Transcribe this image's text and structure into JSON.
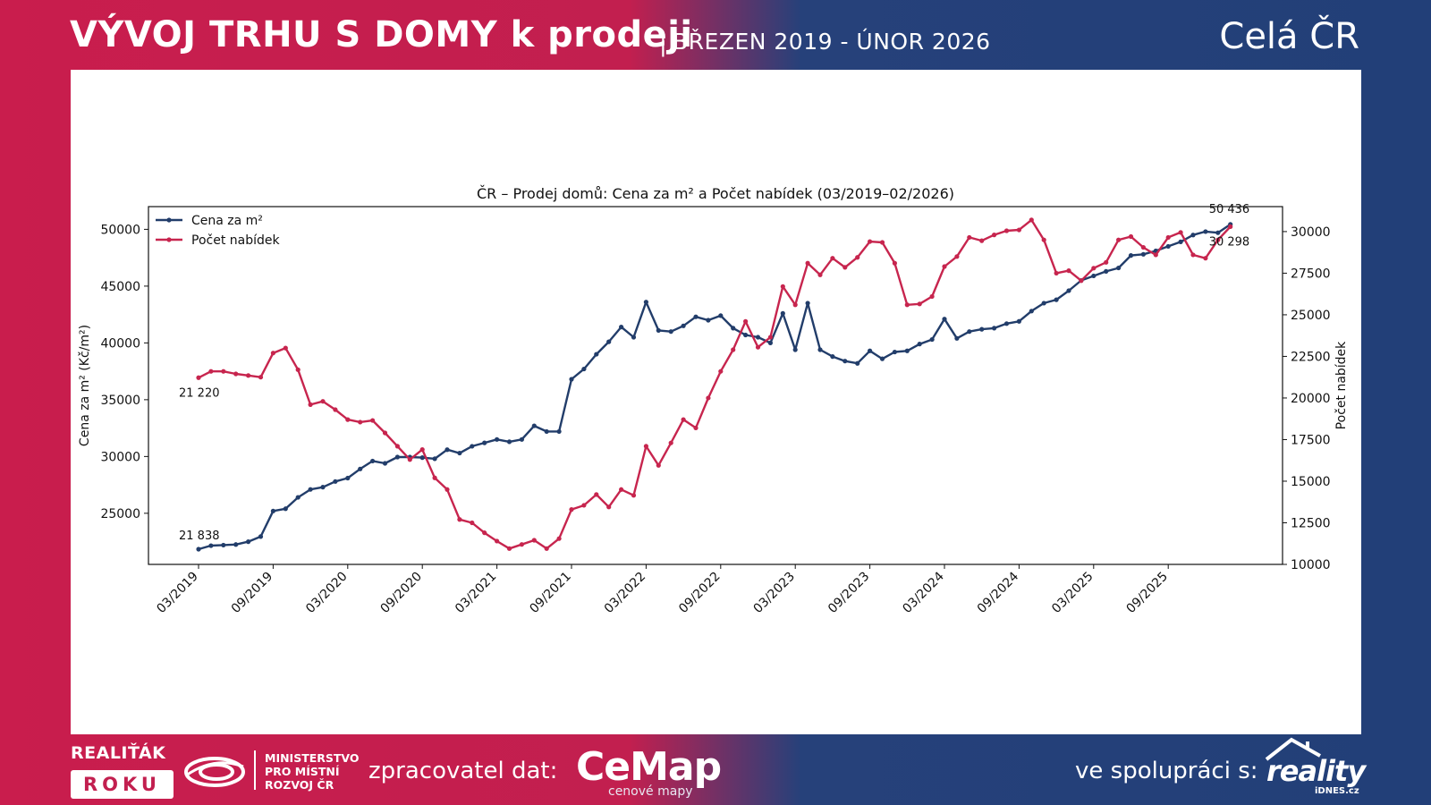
{
  "header": {
    "title": "VÝVOJ TRHU S DOMY k prodeji",
    "separator": "|",
    "period": "BŘEZEN 2019 - ÚNOR 2026",
    "region": "Celá ČR"
  },
  "footer": {
    "realitak_line1": "REALIŤÁK",
    "realitak_line2": "ROKU",
    "ministry": [
      "MINISTERSTVO",
      "PRO MÍSTNÍ",
      "ROZVOJ ČR"
    ],
    "processor_label": "zpracovatel dat:",
    "cemap_name": "CeMap",
    "cemap_sub": "cenové mapy",
    "partner_label": "ve spolupráci s:",
    "reality_name": "reality",
    "reality_sub": "iDNES.cz"
  },
  "colors": {
    "price": "#223d6a",
    "offers": "#c7254e"
  },
  "chart_data": {
    "type": "line",
    "title": "ČR – Prodej domů: Cena za m² a Počet nabídek (03/2019–02/2026)",
    "xlabel": "",
    "ylabel_left": "Cena za m² (Kč/m²)",
    "ylabel_right": "Počet nabídek",
    "ylim_left": [
      20500,
      52000
    ],
    "ylim_right": [
      10000,
      31500
    ],
    "yticks_left": [
      25000,
      30000,
      35000,
      40000,
      45000,
      50000
    ],
    "yticks_right": [
      10000,
      12500,
      15000,
      17500,
      20000,
      22500,
      25000,
      27500,
      30000
    ],
    "xtick_labels": [
      "03/2019",
      "09/2019",
      "03/2020",
      "09/2020",
      "03/2021",
      "09/2021",
      "03/2022",
      "09/2022",
      "03/2023",
      "09/2023",
      "03/2024",
      "09/2024",
      "03/2025",
      "09/2025"
    ],
    "legend": "top-left",
    "series": [
      {
        "name": "Cena za m²",
        "axis": "left",
        "values": [
          21838,
          22150,
          22200,
          22250,
          22500,
          22950,
          25200,
          25400,
          26400,
          27100,
          27300,
          27800,
          28100,
          28900,
          29600,
          29400,
          29950,
          29950,
          29900,
          29800,
          30600,
          30300,
          30900,
          31200,
          31500,
          31300,
          31500,
          32700,
          32200,
          32200,
          36800,
          37700,
          39000,
          40100,
          41400,
          40500,
          43600,
          41100,
          41000,
          41500,
          42300,
          42000,
          42400,
          41300,
          40700,
          40500,
          40000,
          42600,
          39400,
          43500,
          39400,
          38800,
          38400,
          38200,
          39300,
          38600,
          39200,
          39300,
          39900,
          40300,
          42100,
          40400,
          41000,
          41200,
          41300,
          41700,
          41900,
          42800,
          43500,
          43800,
          44600,
          45500,
          45900,
          46300,
          46600,
          47700,
          47800,
          48100,
          48500,
          48900,
          49500,
          49800,
          49700,
          50436
        ],
        "labels": [
          {
            "index": 0,
            "text": "21 838"
          },
          {
            "index": 83,
            "text": "50 436"
          }
        ]
      },
      {
        "name": "Počet nabídek",
        "axis": "right",
        "values": [
          21220,
          21600,
          21600,
          21450,
          21350,
          21250,
          22700,
          23000,
          21700,
          19600,
          19800,
          19300,
          18700,
          18550,
          18650,
          17900,
          17100,
          16300,
          16900,
          15200,
          14500,
          12700,
          12500,
          11900,
          11400,
          10950,
          11200,
          11450,
          10950,
          11550,
          13300,
          13550,
          14200,
          13450,
          14500,
          14150,
          17100,
          15950,
          17300,
          18700,
          18200,
          20000,
          21600,
          22900,
          24600,
          23050,
          23650,
          26700,
          25600,
          28100,
          27400,
          28400,
          27850,
          28450,
          29400,
          29350,
          28100,
          25600,
          25650,
          26100,
          27900,
          28500,
          29650,
          29450,
          29800,
          30050,
          30100,
          30700,
          29500,
          27500,
          27650,
          27050,
          27800,
          28150,
          29500,
          29700,
          29050,
          28600,
          29650,
          29950,
          28600,
          28400,
          29500,
          30298
        ],
        "labels": [
          {
            "index": 0,
            "text": "21 220"
          },
          {
            "index": 83,
            "text": "30 298"
          }
        ]
      }
    ]
  }
}
